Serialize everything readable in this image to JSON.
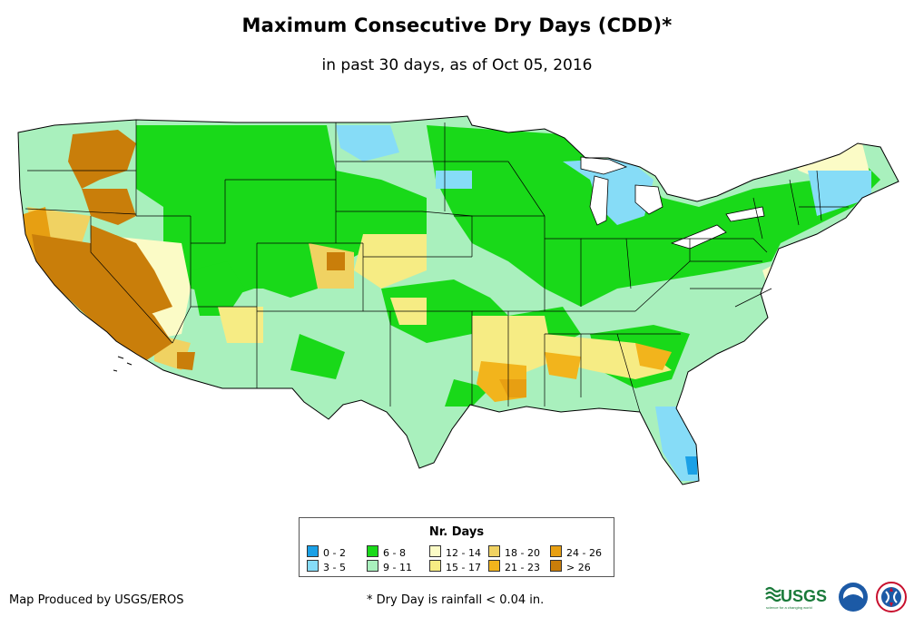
{
  "title": "Maximum Consecutive Dry Days (CDD)*",
  "subtitle": "in past 30 days, as of Oct 05, 2016",
  "legend": {
    "title": "Nr. Days",
    "items": [
      {
        "label": "0 - 2",
        "color": "#1aa0e6"
      },
      {
        "label": "3 - 5",
        "color": "#86dcf7"
      },
      {
        "label": "6 - 8",
        "color": "#19d919"
      },
      {
        "label": "9 - 11",
        "color": "#a9f0bd"
      },
      {
        "label": "12 - 14",
        "color": "#fbfbc6"
      },
      {
        "label": "15 - 17",
        "color": "#f6ec84"
      },
      {
        "label": "18 - 20",
        "color": "#f0d262"
      },
      {
        "label": "21 - 23",
        "color": "#f2b41c"
      },
      {
        "label": "24 - 26",
        "color": "#e79f12"
      },
      {
        "label": "> 26",
        "color": "#c97e0a"
      }
    ]
  },
  "credit": "Map Produced by USGS/EROS",
  "footnote": "* Dry Day is rainfall < 0.04 in.",
  "logos": {
    "usgs_text": "USGS",
    "usgs_tagline": "science for a changing world",
    "noaa_text": "noaa",
    "nws_icon": "nws-logo"
  }
}
